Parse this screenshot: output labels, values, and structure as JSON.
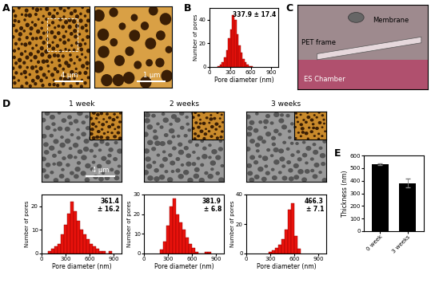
{
  "figure": {
    "panel_labels": [
      "A",
      "B",
      "C",
      "D",
      "E"
    ],
    "A": {
      "scale_bars": [
        "4 µm",
        "1 µm"
      ]
    },
    "C": {
      "labels": [
        "Membrane",
        "PET frame",
        "ES Chamber"
      ]
    },
    "D": {
      "scale_bar": "4 µm"
    }
  },
  "chart_data": [
    {
      "type": "histogram",
      "title": "",
      "bins": [
        120,
        150,
        180,
        210,
        240,
        270,
        300,
        330,
        360,
        390,
        420,
        450,
        480,
        510,
        540,
        570,
        600,
        630
      ],
      "values": [
        1,
        2,
        4,
        8,
        14,
        24,
        32,
        44,
        40,
        28,
        18,
        12,
        7,
        4,
        2,
        1,
        1
      ],
      "color": "#e8120c",
      "x_label": "Pore diameter (nm)",
      "y_label": "Number of pores",
      "annotation": "337.9 ± 17.4",
      "xlim": [
        0,
        1000
      ],
      "xticks": [
        0,
        300,
        600,
        900
      ],
      "ylim": [
        0,
        50
      ],
      "yticks": [
        0,
        20,
        40
      ]
    },
    {
      "type": "histogram",
      "title": "1 week",
      "bins": [
        80,
        120,
        160,
        200,
        240,
        280,
        320,
        360,
        400,
        440,
        480,
        520,
        560,
        600,
        640,
        680,
        720,
        760,
        800,
        840,
        880
      ],
      "values": [
        1,
        2,
        3,
        4,
        8,
        12,
        17,
        22,
        18,
        14,
        10,
        8,
        6,
        4,
        3,
        2,
        1,
        1,
        0,
        1
      ],
      "color": "#e8120c",
      "x_label": "Pore diameter (nm)",
      "y_label": "Number of pores",
      "annotation": "361.4\n± 16.2",
      "xlim": [
        0,
        1000
      ],
      "xticks": [
        0,
        300,
        600,
        900
      ],
      "ylim": [
        0,
        25
      ],
      "yticks": [
        0,
        10,
        20
      ]
    },
    {
      "type": "histogram",
      "title": "2 weeks",
      "bins": [
        200,
        240,
        280,
        320,
        360,
        400,
        440,
        480,
        520,
        560,
        600,
        640,
        680,
        720,
        760,
        800,
        840
      ],
      "values": [
        2,
        6,
        14,
        24,
        28,
        20,
        16,
        12,
        8,
        5,
        3,
        1,
        0,
        0,
        1,
        1
      ],
      "color": "#e8120c",
      "x_label": "Pore diameter (nm)",
      "y_label": "Number of pores",
      "annotation": "381.9\n± 6.8",
      "xlim": [
        0,
        1000
      ],
      "xticks": [
        0,
        300,
        600,
        900
      ],
      "ylim": [
        0,
        30
      ],
      "yticks": [
        0,
        10,
        20,
        30
      ]
    },
    {
      "type": "histogram",
      "title": "3 weeks",
      "bins": [
        280,
        320,
        360,
        400,
        440,
        480,
        520,
        560,
        600,
        640,
        680
      ],
      "values": [
        1,
        2,
        4,
        6,
        10,
        16,
        30,
        34,
        12,
        3
      ],
      "color": "#e8120c",
      "x_label": "Pore diameter (nm)",
      "y_label": "Number of pores",
      "annotation": "466.3\n± 7.1",
      "xlim": [
        0,
        1000
      ],
      "xticks": [
        0,
        300,
        600,
        900
      ],
      "ylim": [
        0,
        40
      ],
      "yticks": [
        0,
        20,
        40
      ]
    },
    {
      "type": "bar",
      "categories": [
        "0 week",
        "3 weeks"
      ],
      "values": [
        530,
        380
      ],
      "errors": [
        6,
        35
      ],
      "color": "#000000",
      "y_label": "Thickness (nm)",
      "ylim": [
        0,
        600
      ],
      "yticks": [
        0,
        100,
        200,
        300,
        400,
        500,
        600
      ]
    }
  ]
}
